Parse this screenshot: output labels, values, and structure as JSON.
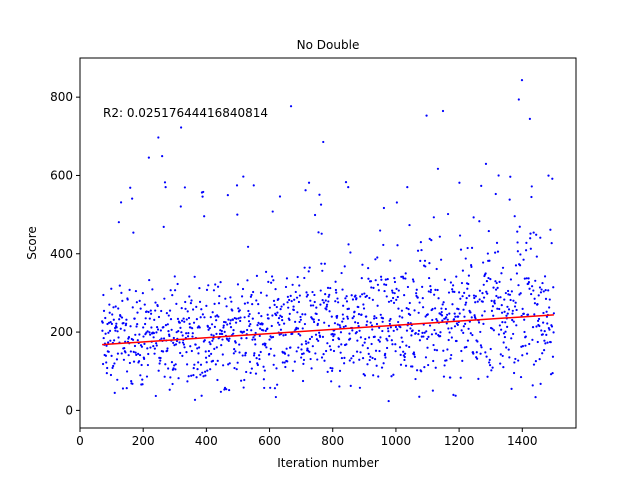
{
  "chart_data": {
    "type": "scatter",
    "title": "No Double",
    "xlabel": "Iteration number",
    "ylabel": "Score",
    "xlim": [
      0,
      1570
    ],
    "ylim": [
      -45,
      900
    ],
    "x_ticks": [
      0,
      200,
      400,
      600,
      800,
      1000,
      1200,
      1400
    ],
    "y_ticks": [
      0,
      200,
      400,
      600,
      800
    ],
    "annotation": "R2: 0.02517644416840814",
    "grid": false,
    "legend": "none",
    "colors": {
      "points": "#0000ff",
      "trend": "#ff0000"
    },
    "trendline": {
      "x": [
        70,
        1500
      ],
      "y": [
        168,
        244
      ]
    },
    "points": {
      "x_start": 70,
      "x_end": 1500,
      "count": 1431,
      "y_min": 0,
      "y_max": 860,
      "typical_range": [
        0,
        420
      ],
      "notes": "dense cloud mostly between 0 and 400 with sparse outliers up to ~860"
    }
  }
}
